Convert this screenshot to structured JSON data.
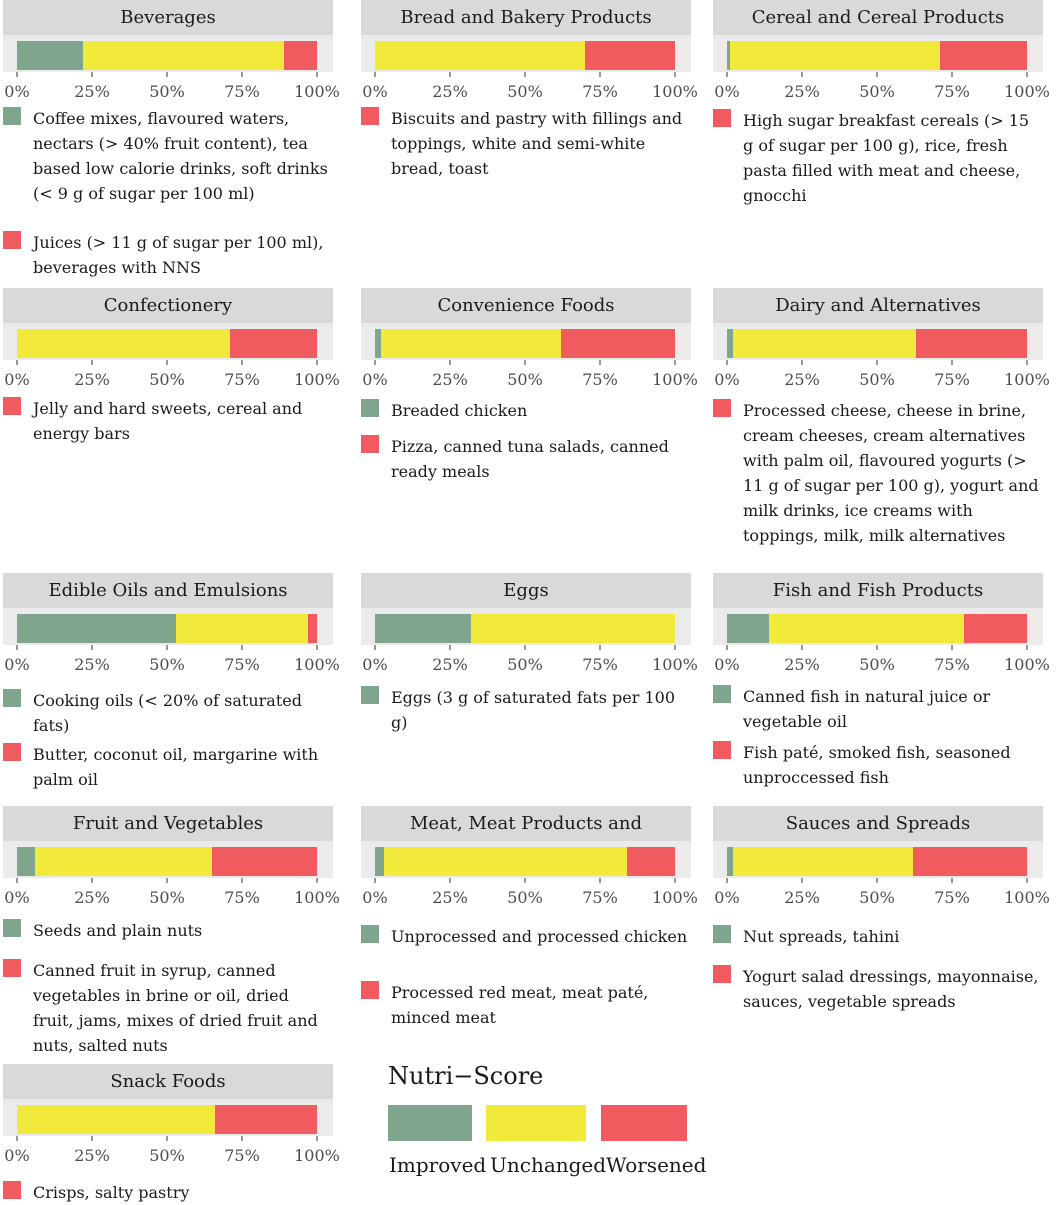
{
  "colors": {
    "improved": "#7fa58f",
    "unchanged": "#f2e93d",
    "worsened": "#ef5b5e",
    "panel_header": "#d9d9d9",
    "bar_bg": "#ebebeb"
  },
  "ticks": [
    "0%",
    "25%",
    "50%",
    "75%",
    "100%"
  ],
  "legend": {
    "title": "Nutri−Score",
    "improved": "Improved",
    "unchanged": "Unchanged",
    "worsened": "Worsened"
  },
  "chart_data": {
    "type": "bar",
    "orientation": "horizontal",
    "stacked": true,
    "xlim": [
      0,
      100
    ],
    "series_names": [
      "Improved",
      "Unchanged",
      "Worsened"
    ],
    "panels": [
      {
        "title": "Beverages",
        "values": [
          22,
          67,
          11
        ],
        "notes": [
          {
            "group": "improved",
            "text": "Coffee mixes, flavoured waters, nectars (> 40% fruit content), tea based low calorie drinks, soft drinks (< 9 g of sugar per 100 ml)"
          },
          {
            "group": "worsened",
            "text": "Juices (> 11 g  of sugar per 100 ml), beverages with NNS"
          }
        ]
      },
      {
        "title": "Bread and Bakery Products",
        "values": [
          0,
          70,
          30
        ],
        "notes": [
          {
            "group": "worsened",
            "text": "Biscuits and pastry with fillings and toppings, white and semi-white bread, toast"
          }
        ]
      },
      {
        "title": "Cereal and Cereal Products",
        "values": [
          1,
          70,
          29
        ],
        "notes": [
          {
            "group": "worsened",
            "text": "High sugar breakfast cereals (> 15 g of sugar per 100 g), rice, fresh pasta filled with meat and cheese, gnocchi"
          }
        ]
      },
      {
        "title": "Confectionery",
        "values": [
          0,
          71,
          29
        ],
        "notes": [
          {
            "group": "worsened",
            "text": "Jelly and hard sweets, cereal and energy bars"
          }
        ]
      },
      {
        "title": "Convenience Foods",
        "values": [
          2,
          60,
          38
        ],
        "notes": [
          {
            "group": "improved",
            "text": "Breaded chicken"
          },
          {
            "group": "worsened",
            "text": "Pizza, canned tuna salads, canned ready meals"
          }
        ]
      },
      {
        "title": "Dairy and Alternatives",
        "values": [
          2,
          61,
          37
        ],
        "notes": [
          {
            "group": "worsened",
            "text": "Processed cheese, cheese in brine, cream cheeses, cream alternatives with palm oil, flavoured yogurts (> 11 g of sugar per 100 g), yogurt and milk drinks, ice creams with toppings, milk, milk alternatives"
          }
        ]
      },
      {
        "title": "Edible Oils and Emulsions",
        "values": [
          53,
          44,
          3
        ],
        "notes": [
          {
            "group": "improved",
            "text": "Cooking oils (< 20% of saturated fats)"
          },
          {
            "group": "worsened",
            "text": "Butter, coconut oil, margarine with palm oil"
          }
        ]
      },
      {
        "title": "Eggs",
        "values": [
          32,
          68,
          0
        ],
        "notes": [
          {
            "group": "improved",
            "text": "Eggs (3 g of saturated fats per 100 g)"
          }
        ]
      },
      {
        "title": "Fish and Fish Products",
        "values": [
          14,
          65,
          21
        ],
        "notes": [
          {
            "group": "improved",
            "text": "Canned fish in natural juice or vegetable oil"
          },
          {
            "group": "worsened",
            "text": "Fish paté, smoked fish, seasoned unproccessed fish"
          }
        ]
      },
      {
        "title": "Fruit and Vegetables",
        "values": [
          6,
          59,
          35
        ],
        "notes": [
          {
            "group": "improved",
            "text": "Seeds and plain nuts"
          },
          {
            "group": "worsened",
            "text": "Canned fruit in syrup, canned vegetables in brine or oil, dried fruit, jams, mixes of dried fruit and nuts, salted nuts"
          }
        ]
      },
      {
        "title": "Meat, Meat Products and Alternatives",
        "values": [
          3,
          81,
          16
        ],
        "notes": [
          {
            "group": "improved",
            "text": "Unprocessed and processed chicken"
          },
          {
            "group": "worsened",
            "text": "Processed red meat, meat paté, minced meat"
          }
        ]
      },
      {
        "title": "Sauces and Spreads",
        "values": [
          2,
          60,
          38
        ],
        "notes": [
          {
            "group": "improved",
            "text": "Nut spreads, tahini"
          },
          {
            "group": "worsened",
            "text": "Yogurt salad dressings, mayonnaise, sauces, vegetable spreads"
          }
        ]
      },
      {
        "title": "Snack Foods",
        "values": [
          0,
          66,
          34
        ],
        "notes": [
          {
            "group": "worsened",
            "text": "Crisps, salty pastry"
          }
        ]
      }
    ]
  }
}
